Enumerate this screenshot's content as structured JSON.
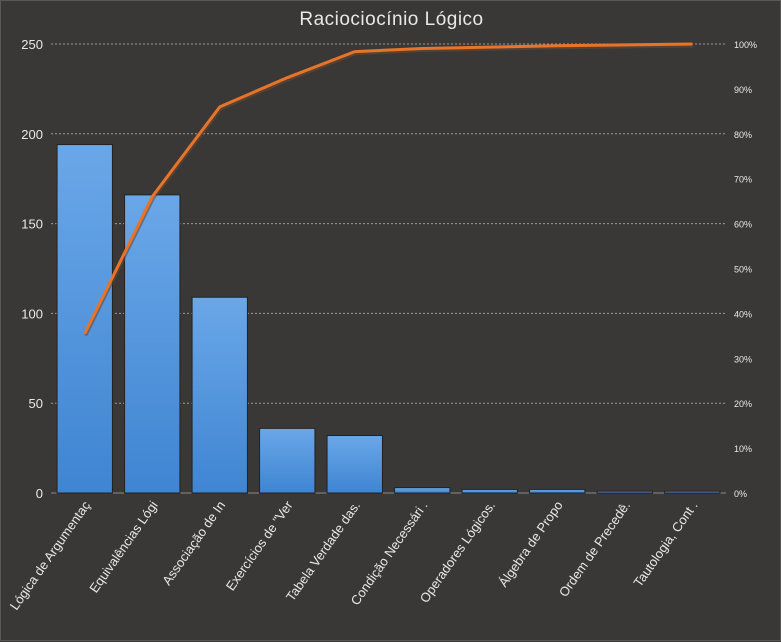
{
  "chart_data": {
    "type": "bar",
    "title": "Raciociocínio  Lógico",
    "categories": [
      "Lógica de Argumentaç",
      "Equivalências Lógi",
      "Associação de In",
      "Exercícios de \"Ver",
      "Tabela Verdade das.",
      "Condição Necessári .",
      "Operadores Lógicos.",
      "Álgebra de Propo",
      "Ordem de Precedê.",
      "Tautologia, Cont ."
    ],
    "series": [
      {
        "type": "bar",
        "axis": "left",
        "values": [
          194,
          166,
          109,
          36,
          32,
          3,
          2,
          2,
          1,
          1
        ]
      },
      {
        "type": "line",
        "axis": "right",
        "values": [
          35.5,
          66,
          86,
          92.5,
          98.3,
          99,
          99.3,
          99.6,
          99.8,
          100
        ]
      }
    ],
    "y_left": {
      "min": 0,
      "max": 250,
      "ticks": [
        "0",
        "50",
        "100",
        "150",
        "200",
        "250"
      ]
    },
    "y_right": {
      "min": 0,
      "max": 100,
      "ticks": [
        "0%",
        "10%",
        "20%",
        "30%",
        "40%",
        "50%",
        "60%",
        "70%",
        "80%",
        "90%",
        "100%"
      ]
    },
    "grid": "horizontal-dashed",
    "legend": "none",
    "colors": {
      "background": "#3a3836",
      "bar_top": "#6aa7e8",
      "bar_bottom": "#3f85d2",
      "bar_border": "#222222",
      "line": "#e8742a",
      "line_shadow": "#6b4a30",
      "text": "#e8e8e8",
      "grid": "#9a9a9a"
    }
  }
}
